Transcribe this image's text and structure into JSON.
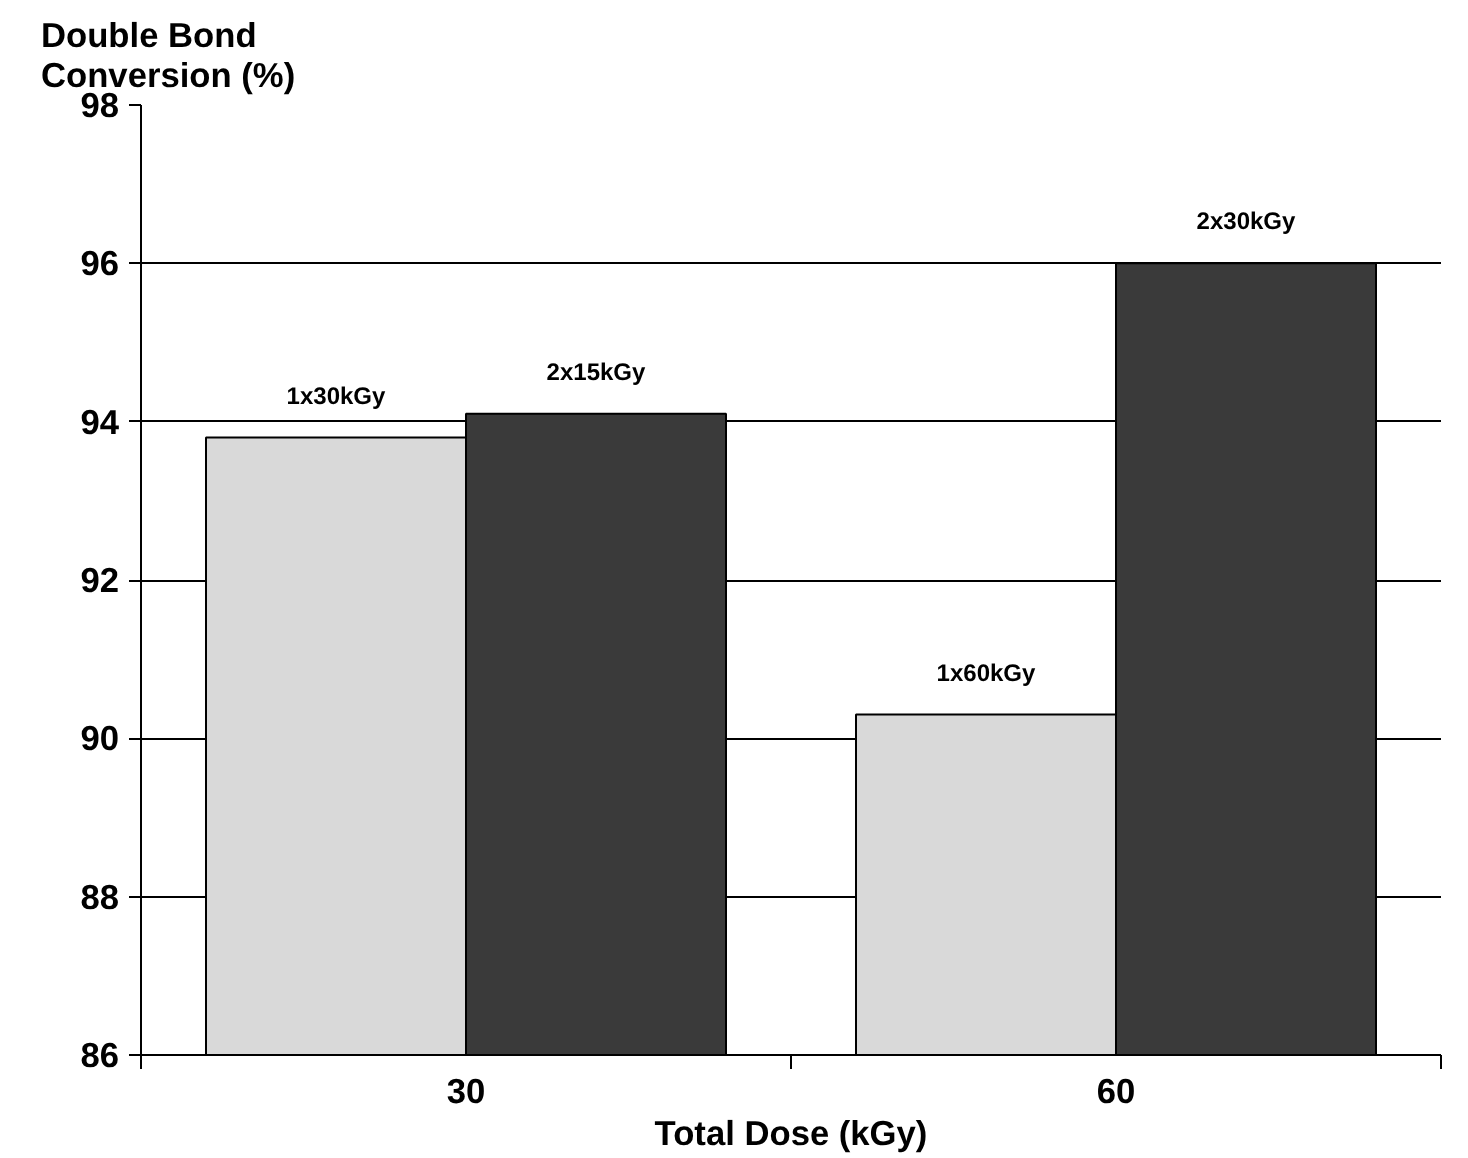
{
  "chart_data": {
    "type": "bar",
    "ylabel": "Double Bond\nConversion (%)",
    "xlabel": "Total Dose (kGy)",
    "categories": [
      "30",
      "60"
    ],
    "series": [
      {
        "color": "#d9d9d9",
        "values": [
          93.8,
          90.3
        ]
      },
      {
        "color": "#3a3a3a",
        "values": [
          94.1,
          96.0
        ]
      }
    ],
    "ylim": [
      86,
      98
    ],
    "yticks": [
      86,
      88,
      90,
      92,
      94,
      96,
      98
    ],
    "grid": "y",
    "annotations": [
      {
        "text": "1x30kGy",
        "y": 93.8
      },
      {
        "text": "2x15kGy",
        "y": 94.1
      },
      {
        "text": "1x60kGy",
        "y": 90.3
      },
      {
        "text": "2x30kGy",
        "y": 96.0
      }
    ]
  }
}
